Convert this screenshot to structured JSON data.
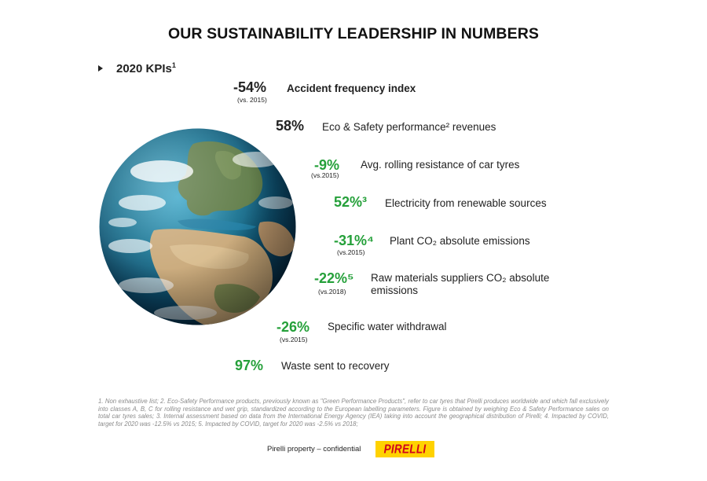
{
  "title": "OUR SUSTAINABILITY LEADERSHIP IN NUMBERS",
  "kpi_header": {
    "label": "2020 KPIs",
    "sup": "1"
  },
  "kpis": [
    {
      "value": "-54%",
      "ref": "(vs. 2015)",
      "label_html": "Accident frequency index",
      "color": "#222222"
    },
    {
      "value": "58%",
      "ref": "",
      "label_html": "Eco & Safety performance² revenues",
      "color": "#222222"
    },
    {
      "value": "-9%",
      "ref": "(vs.2015)",
      "label_html": "Avg. rolling resistance of car tyres",
      "color": "#25a03a"
    },
    {
      "value": "52%³",
      "ref": "",
      "label_html": "Electricity from renewable sources",
      "color": "#25a03a"
    },
    {
      "value": "-31%⁴",
      "ref": "(vs.2015)",
      "label_html": "Plant CO₂ absolute emissions",
      "color": "#25a03a"
    },
    {
      "value": "-22%⁵",
      "ref": "(vs.2018)",
      "label_html": "Raw materials suppliers CO₂ absolute emissions",
      "color": "#25a03a"
    },
    {
      "value": "-26%",
      "ref": "(vs.2015)",
      "label_html": "Specific water withdrawal",
      "color": "#25a03a"
    },
    {
      "value": "97%",
      "ref": "",
      "label_html": "Waste sent to recovery",
      "color": "#25a03a"
    }
  ],
  "footnote": "1. Non exhaustive list; 2. Eco-Safety Performance products, previously known as \"Green Performance Products\", refer to car tyres that Pirelli produces worldwide and which fall exclusively into classes A, B, C for rolling resistance and wet grip, standardized according to the European labelling parameters. Figure is obtained by weighing Eco & Safety Performance sales on total car tyres sales; 3. Internal assessment based on data from the International Energy Agency (IEA) taking into account the geographical distribution of Pirelli; 4. Impacted by COVID, target for 2020 was -12.5% vs 2015; 5. Impacted by COVID, target for 2020 was -2.5% vs 2018;",
  "confidential": "Pirelli property – confidential",
  "logo_text": "PIRELLI",
  "colors": {
    "green": "#25a03a",
    "logo_bg": "#ffd200",
    "logo_text": "#d0021b"
  }
}
